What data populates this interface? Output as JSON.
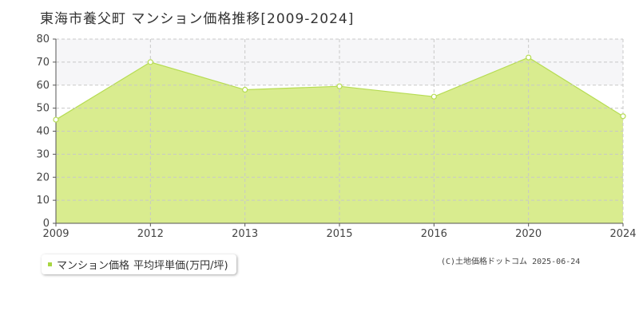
{
  "title": "東海市養父町 マンション価格推移[2009-2024]",
  "legend": {
    "series_label": "マンション価格",
    "unit_label": "平均坪単価(万円/坪)"
  },
  "copyright": "(C)土地価格ドットコム 2025-06-24",
  "colors": {
    "area_fill": "#d9ec8f",
    "line": "#b6dc53",
    "band": "#f6f6f8",
    "grid": "#c8c8c8",
    "axis": "#555555"
  },
  "chart_data": {
    "type": "area",
    "title": "東海市養父町 マンション価格推移[2009-2024]",
    "x": [
      "2009",
      "2012",
      "2013",
      "2015",
      "2016",
      "2020",
      "2024"
    ],
    "series": [
      {
        "name": "マンション価格",
        "values": [
          45,
          70,
          58,
          59.5,
          55,
          72,
          46.5
        ]
      }
    ],
    "ylim": [
      0,
      80
    ],
    "yticks": [
      0,
      10,
      20,
      30,
      40,
      50,
      60,
      70,
      80
    ],
    "grid": true,
    "legend": "bottom-left"
  }
}
